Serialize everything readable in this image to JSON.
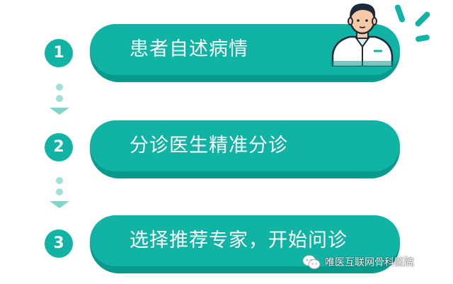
{
  "colors": {
    "primary": "#10b3a4",
    "primary_shadow": "#0a9a8c",
    "connector": "#9fe0d8",
    "doctor_outline": "#1d2a3a",
    "white": "#ffffff"
  },
  "steps": [
    {
      "number": "1",
      "label": "患者自述病情"
    },
    {
      "number": "2",
      "label": "分诊医生精准分诊"
    },
    {
      "number": "3",
      "label": "选择推荐专家，开始问诊"
    }
  ],
  "illustration": {
    "icon": "doctor-icon",
    "accent_icon": "attention-rays-icon"
  },
  "watermark": {
    "icon": "wechat-icon",
    "text": "唯医互联网骨科医院"
  }
}
